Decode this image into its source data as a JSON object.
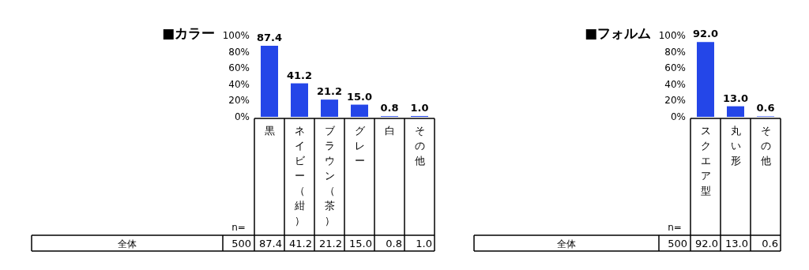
{
  "chart_data": [
    {
      "type": "bar",
      "title": "■カラー",
      "categories": [
        "黒",
        "ネイビー（紺）",
        "ブラウン（茶）",
        "グレー",
        "白",
        "その他"
      ],
      "values": [
        87.4,
        41.2,
        21.2,
        15.0,
        0.8,
        1.0
      ],
      "value_labels": [
        "87.4",
        "41.2",
        "21.2",
        "15.0",
        "0.8",
        "1.0"
      ],
      "color": "#2446e8",
      "ylim": [
        0,
        100
      ],
      "yticks": [
        {
          "value": 0,
          "label": "0%"
        },
        {
          "value": 20,
          "label": "20%"
        },
        {
          "value": 40,
          "label": "40%"
        },
        {
          "value": 60,
          "label": "60%"
        },
        {
          "value": 80,
          "label": "80%"
        },
        {
          "value": 100,
          "label": "100%"
        }
      ],
      "annotations": [
        "n=",
        "全体",
        "500"
      ]
    },
    {
      "type": "bar",
      "title": "■フォルム",
      "categories": [
        "スクエア型",
        "丸い形",
        "その他"
      ],
      "values": [
        92.0,
        13.0,
        0.6
      ],
      "value_labels": [
        "92.0",
        "13.0",
        "0.6"
      ],
      "color": "#2446e8",
      "ylim": [
        0,
        100
      ],
      "yticks": [
        {
          "value": 0,
          "label": "0%"
        },
        {
          "value": 20,
          "label": "20%"
        },
        {
          "value": 40,
          "label": "40%"
        },
        {
          "value": 60,
          "label": "60%"
        },
        {
          "value": 80,
          "label": "80%"
        },
        {
          "value": 100,
          "label": "100%"
        }
      ],
      "annotations": [
        "n=",
        "全体",
        "500"
      ]
    }
  ]
}
